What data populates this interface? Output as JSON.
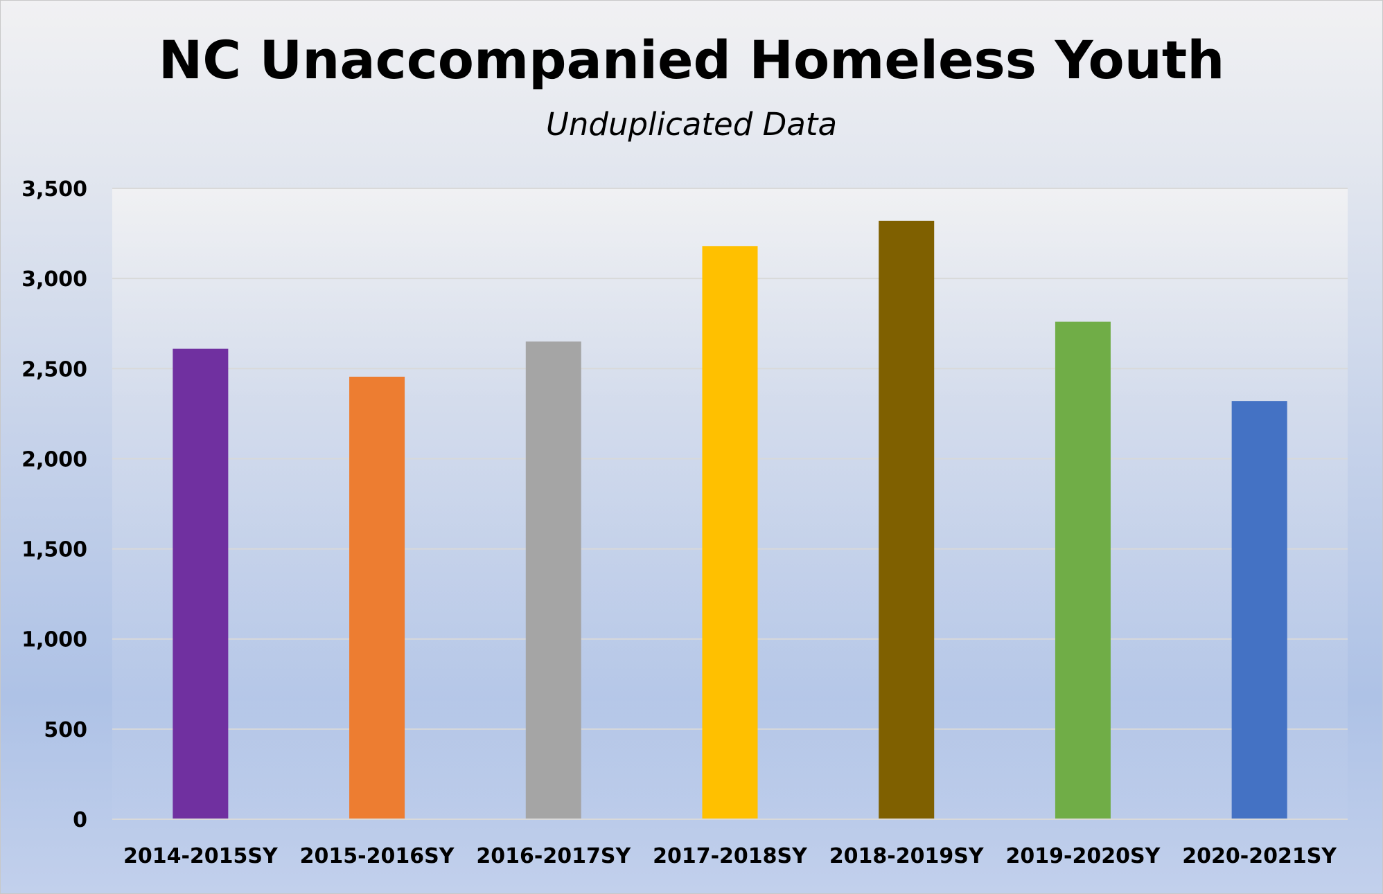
{
  "chart_data": {
    "type": "bar",
    "title": "NC Unaccompanied Homeless Youth",
    "subtitle": "Unduplicated Data",
    "xlabel": "",
    "ylabel": "",
    "categories": [
      "2014-2015SY",
      "2015-2016SY",
      "2016-2017SY",
      "2017-2018SY",
      "2018-2019SY",
      "2019-2020SY",
      "2020-2021SY"
    ],
    "values": [
      2610,
      2455,
      2650,
      3180,
      3320,
      2760,
      2320
    ],
    "colors": [
      "#7030a0",
      "#ed7d31",
      "#a5a5a5",
      "#ffc000",
      "#7f6000",
      "#70ad47",
      "#4472c4"
    ],
    "ylim": [
      0,
      3500
    ],
    "yticks": [
      0,
      500,
      1000,
      1500,
      2000,
      2500,
      3000,
      3500
    ],
    "ytick_labels": [
      "0",
      "500",
      "1,000",
      "1,500",
      "2,000",
      "2,500",
      "3,000",
      "3,500"
    ],
    "grid": true,
    "legend": "none"
  }
}
